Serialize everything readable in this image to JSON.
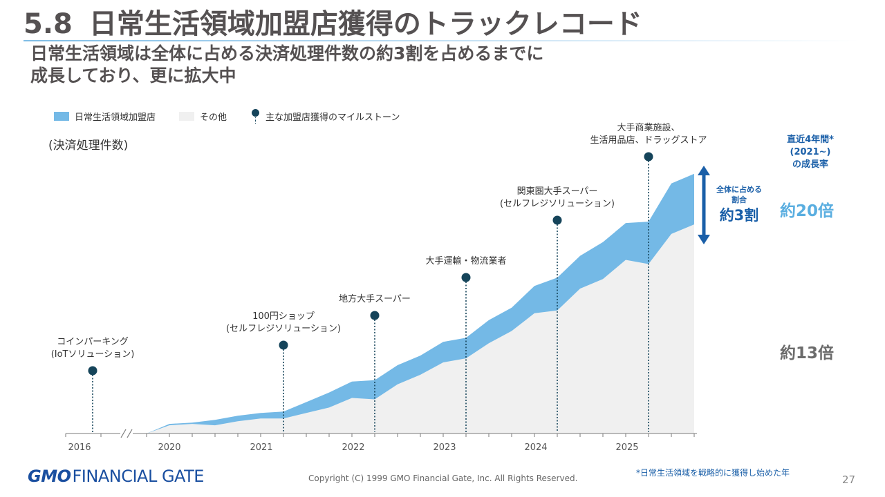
{
  "header": {
    "number": "5.8",
    "title": "日常生活領域加盟店獲得のトラックレコード",
    "subtitle_line1": "日常生活領域は全体に占める決済処理件数の約3割を占めるまでに",
    "subtitle_line2": "成長しており、更に拡大中"
  },
  "legend": {
    "daily": "日常生活領域加盟店",
    "other": "その他",
    "milestone": "主な加盟店獲得のマイルストーン"
  },
  "colors": {
    "daily": "#74b9e6",
    "other": "#f0f0f0",
    "milestone": "#15445a",
    "accent": "#1a5fa8"
  },
  "chart_data": {
    "type": "area",
    "ylabel": "(決済処理件数)",
    "x_tick_labels": [
      "2016",
      "2020",
      "2021",
      "2022",
      "2023",
      "2024",
      "2025"
    ],
    "axis_break_between": [
      "2016",
      "2020"
    ],
    "x_quarters": [
      "2019Q4",
      "2020Q1",
      "2020Q2",
      "2020Q3",
      "2020Q4",
      "2021Q1",
      "2021Q2",
      "2021Q3",
      "2021Q4",
      "2022Q1",
      "2022Q2",
      "2022Q3",
      "2022Q4",
      "2023Q1",
      "2023Q2",
      "2023Q3",
      "2023Q4",
      "2024Q1",
      "2024Q2",
      "2024Q3",
      "2024Q4",
      "2025Q1",
      "2025Q2",
      "2025Q3",
      "2025Q4"
    ],
    "series": [
      {
        "name": "その他",
        "values": [
          0,
          0.6,
          0.7,
          0.6,
          0.9,
          1.1,
          1.1,
          1.5,
          1.9,
          2.6,
          2.5,
          3.6,
          4.3,
          5.2,
          5.5,
          6.6,
          7.5,
          8.8,
          9.0,
          10.6,
          11.3,
          12.7,
          12.4,
          14.6,
          15.3
        ]
      },
      {
        "name": "日常生活領域加盟店",
        "values": [
          0,
          0.1,
          0.1,
          0.4,
          0.4,
          0.4,
          0.5,
          0.8,
          1.1,
          1.2,
          1.4,
          1.4,
          1.4,
          1.5,
          1.5,
          1.7,
          1.7,
          2.0,
          2.4,
          2.4,
          2.7,
          2.7,
          3.1,
          3.7,
          3.7
        ]
      }
    ],
    "ylim": [
      0,
      20
    ],
    "milestones": [
      {
        "x": "2016",
        "label": [
          "コインパーキング",
          "(IoTソリューション)"
        ]
      },
      {
        "x": "2021Q2",
        "label": [
          "100円ショップ",
          "(セルフレジソリューション)"
        ]
      },
      {
        "x": "2022Q2",
        "label": [
          "地方大手スーパー"
        ]
      },
      {
        "x": "2023Q2",
        "label": [
          "大手運輸・物流業者"
        ]
      },
      {
        "x": "2024Q2",
        "label": [
          "関東圏大手スーパー",
          "(セルフレジソリューション)"
        ]
      },
      {
        "x": "2025Q2",
        "label": [
          "大手商業施設、",
          "生活用品店、ドラッグストア"
        ]
      }
    ]
  },
  "growth": {
    "title_line1": "直近4年間*",
    "title_line2": "(2021~)",
    "title_line3": "の成長率",
    "daily_growth": "約20倍",
    "other_growth": "約13倍"
  },
  "share": {
    "line1": "全体に占める",
    "line2": "割合",
    "value": "約3割"
  },
  "footer": {
    "logo_gmo": "GMO",
    "logo_text": "FINANCIAL GATE",
    "copyright": "Copyright (C) 1999 GMO Financial Gate, Inc. All Rights Reserved.",
    "footnote": "*日常生活領域を戦略的に獲得し始めた年",
    "page": "27"
  }
}
